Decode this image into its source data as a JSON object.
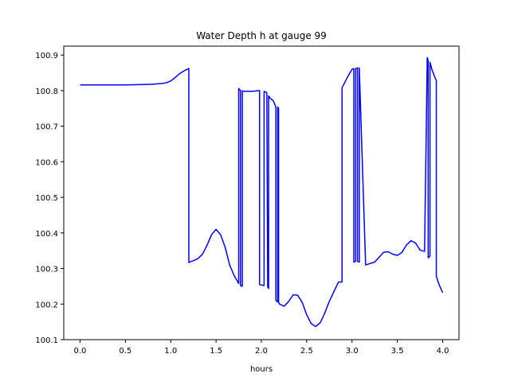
{
  "chart_data": {
    "type": "line",
    "title": "Water Depth h at gauge 99",
    "xlabel": "hours",
    "ylabel": "",
    "xlim": [
      -0.18,
      4.18
    ],
    "ylim": [
      100.1,
      100.925
    ],
    "x_ticks": [
      0.0,
      0.5,
      1.0,
      1.5,
      2.0,
      2.5,
      3.0,
      3.5,
      4.0
    ],
    "x_tick_labels": [
      "0.0",
      "0.5",
      "1.0",
      "1.5",
      "2.0",
      "2.5",
      "3.0",
      "3.5",
      "4.0"
    ],
    "y_ticks": [
      100.1,
      100.2,
      100.3,
      100.4,
      100.5,
      100.6,
      100.7,
      100.8,
      100.9
    ],
    "y_tick_labels": [
      "100.1",
      "100.2",
      "100.3",
      "100.4",
      "100.5",
      "100.6",
      "100.7",
      "100.8",
      "100.9"
    ],
    "grid": false,
    "series": [
      {
        "name": "",
        "color": "#0000ff",
        "x": [
          0.0,
          0.5,
          0.7,
          0.8,
          0.9,
          0.95,
          1.0,
          1.05,
          1.1,
          1.15,
          1.2,
          1.2,
          1.25,
          1.3,
          1.35,
          1.4,
          1.45,
          1.5,
          1.55,
          1.6,
          1.65,
          1.7,
          1.75,
          1.75,
          1.77,
          1.77,
          1.79,
          1.79,
          1.8,
          1.9,
          1.98,
          1.98,
          2.03,
          2.03,
          2.06,
          2.07,
          2.08,
          2.08,
          2.09,
          2.09,
          2.13,
          2.15,
          2.16,
          2.16,
          2.18,
          2.18,
          2.19,
          2.19,
          2.2,
          2.25,
          2.3,
          2.35,
          2.4,
          2.45,
          2.5,
          2.55,
          2.6,
          2.65,
          2.7,
          2.75,
          2.8,
          2.85,
          2.89,
          2.89,
          2.95,
          3.0,
          3.02,
          3.02,
          3.04,
          3.04,
          3.06,
          3.06,
          3.08,
          3.08,
          3.15,
          3.25,
          3.3,
          3.35,
          3.4,
          3.45,
          3.5,
          3.55,
          3.6,
          3.65,
          3.7,
          3.75,
          3.8,
          3.83,
          3.84,
          3.84,
          3.86,
          3.86,
          3.88,
          3.91,
          3.93,
          3.93,
          3.96,
          4.0
        ],
        "y": [
          100.816,
          100.816,
          100.817,
          100.818,
          100.82,
          100.822,
          100.827,
          100.837,
          100.848,
          100.856,
          100.862,
          100.317,
          100.322,
          100.328,
          100.34,
          100.365,
          100.395,
          100.41,
          100.395,
          100.36,
          100.31,
          100.28,
          100.258,
          100.806,
          100.8,
          100.252,
          100.25,
          100.8,
          100.798,
          100.798,
          100.8,
          100.255,
          100.252,
          100.798,
          100.794,
          100.248,
          100.244,
          100.785,
          100.782,
          100.78,
          100.772,
          100.76,
          100.754,
          100.21,
          100.206,
          100.754,
          100.75,
          100.205,
          100.2,
          100.194,
          100.207,
          100.226,
          100.225,
          100.205,
          100.17,
          100.145,
          100.137,
          100.148,
          100.175,
          100.208,
          100.235,
          100.262,
          100.262,
          100.808,
          100.838,
          100.86,
          100.862,
          100.318,
          100.32,
          100.862,
          100.864,
          100.32,
          100.318,
          100.864,
          100.31,
          100.318,
          100.332,
          100.346,
          100.347,
          100.34,
          100.337,
          100.345,
          100.366,
          100.378,
          100.372,
          100.352,
          100.348,
          100.893,
          100.885,
          100.33,
          100.335,
          100.88,
          100.86,
          100.84,
          100.828,
          100.278,
          100.255,
          100.232
        ]
      }
    ]
  }
}
